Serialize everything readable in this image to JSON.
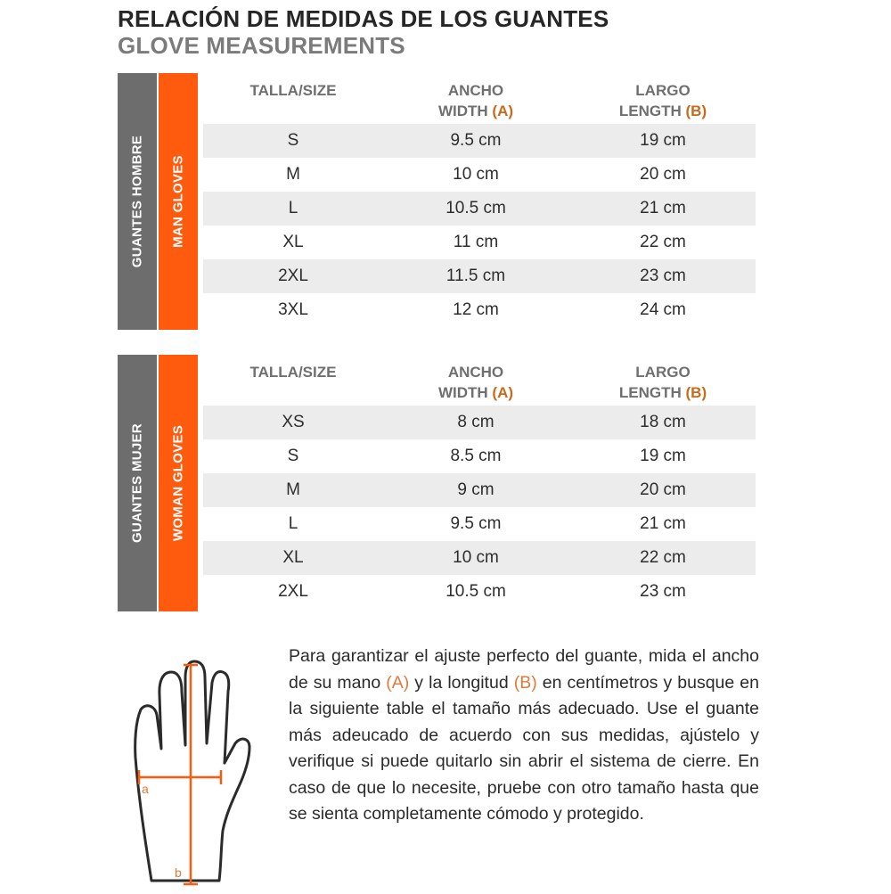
{
  "title": "RELACIÓN DE MEDIDAS DE LOS GUANTES",
  "subtitle": "GLOVE MEASUREMENTS",
  "colors": {
    "grey_bar": "#6d6d6d",
    "orange_bar": "#ff5b0f",
    "accent": "#c86a1c",
    "row_shade": "#ececec"
  },
  "man": {
    "label_es": "GUANTES HOMBRE",
    "label_en": "MAN GLOVES",
    "headers": {
      "size": "TALLA/SIZE",
      "width_es": "ANCHO",
      "width_en": "WIDTH",
      "width_key": "(A)",
      "length_es": "LARGO",
      "length_en": "LENGTH",
      "length_key": "(B)"
    },
    "rows": [
      {
        "size": "S",
        "width": "9.5 cm",
        "length": "19 cm"
      },
      {
        "size": "M",
        "width": "10 cm",
        "length": "20 cm"
      },
      {
        "size": "L",
        "width": "10.5 cm",
        "length": "21 cm"
      },
      {
        "size": "XL",
        "width": "11 cm",
        "length": "22 cm"
      },
      {
        "size": "2XL",
        "width": "11.5 cm",
        "length": "23 cm"
      },
      {
        "size": "3XL",
        "width": "12 cm",
        "length": "24 cm"
      }
    ]
  },
  "woman": {
    "label_es": "GUANTES MUJER",
    "label_en": "WOMAN GLOVES",
    "headers": {
      "size": "TALLA/SIZE",
      "width_es": "ANCHO",
      "width_en": "WIDTH",
      "width_key": "(A)",
      "length_es": "LARGO",
      "length_en": "LENGTH",
      "length_key": "(B)"
    },
    "rows": [
      {
        "size": "XS",
        "width": "8 cm",
        "length": "18 cm"
      },
      {
        "size": "S",
        "width": "8.5 cm",
        "length": "19 cm"
      },
      {
        "size": "M",
        "width": "9 cm",
        "length": "20 cm"
      },
      {
        "size": "L",
        "width": "9.5 cm",
        "length": "21 cm"
      },
      {
        "size": "XL",
        "width": "10 cm",
        "length": "22 cm"
      },
      {
        "size": "2XL",
        "width": "10.5 cm",
        "length": "23 cm"
      }
    ]
  },
  "instructions": {
    "part1": "Para garantizar el ajuste perfecto del guante, mida el ancho de su mano ",
    "key_a": "(A)",
    "part2": " y la longitud ",
    "key_b": "(B)",
    "part3": " en centímetros y busque en la siguiente table el tamaño más adecuado. Use el guante más adeucado de acuerdo con sus medidas, ajústelo y verifique si puede quitarlo sin abrir el sistema de cierre. En caso de que lo necesite, pruebe con otro tamaño hasta que se sienta completamente cómodo y protegido."
  },
  "hand_diagram": {
    "icon": "hand-outline-icon",
    "label_a": "a",
    "label_b": "b"
  }
}
